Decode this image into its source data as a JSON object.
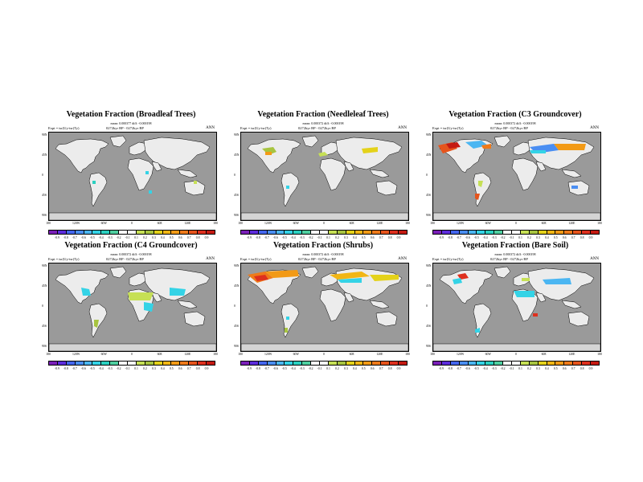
{
  "colorbar_colors": [
    "#7a1fb8",
    "#5d2cdc",
    "#4466ee",
    "#4a8ef2",
    "#4bb6f2",
    "#34d3e6",
    "#2bd0c0",
    "#4fcfa0",
    "#ffffff",
    "#ffffff",
    "#c6e055",
    "#a7c440",
    "#e4d21a",
    "#f2b614",
    "#f29a16",
    "#ee7a1a",
    "#e6541c",
    "#de301e",
    "#c51a12"
  ],
  "colors": {
    "ocean": "#9a9a9a",
    "land": "#ececec",
    "antarctica": "#d4d4d4"
  },
  "axes": {
    "lat_ticks": [
      "90N",
      "45N",
      "0",
      "45S",
      "90S"
    ],
    "lon_ticks_a": [
      "180",
      "120W",
      "60W",
      "0",
      "60E",
      "120E",
      "180"
    ]
  },
  "panels": [
    {
      "title": "Vegetation Fraction (Broadleaf Trees)",
      "mean_line": "mean: 0.000377 diff: -0.000198",
      "expt": "Expt = tsr(Uy-tsr(Ty)",
      "times": "0272kyr BP - 0272kyr BP",
      "season": "ANN",
      "cbar_labels": [
        "-0.9",
        "-0.8",
        "-0.7",
        "-0.6",
        "-0.5",
        "-0.4",
        "-0.3",
        "-0.2",
        "-0.1",
        "0.1",
        "0.2",
        "0.3",
        "0.4",
        "0.5",
        "0.6",
        "0.7",
        "0.8",
        "0.9"
      ]
    },
    {
      "title": "Vegetation Fraction (Needleleaf Trees)",
      "mean_line": "mean: 0.000372 diff: -0.000198",
      "expt": "Expt = tsr(Uy-tsr(Ty)",
      "times": "0272kyr BP - 0272kyr BP",
      "season": "ANN",
      "cbar_labels": [
        "-0.9",
        "-0.8",
        "-0.7",
        "-0.6",
        "-0.5",
        "-0.4",
        "-0.3",
        "-0.2",
        "-0.1",
        "0.1",
        "0.2",
        "0.3",
        "0.4",
        "0.5",
        "0.6",
        "0.7",
        "0.8",
        "0.9"
      ]
    },
    {
      "title": "Vegetation Fraction (C3 Groundcover)",
      "mean_line": "mean: 0.000372 diff: -0.000198",
      "expt": "Expt = tsr(Uy-tsr(Ty)",
      "times": "0272kyr BP - 0272kyr BP",
      "season": "ANN",
      "cbar_labels": [
        "-0.9",
        "-0.8",
        "-0.7",
        "-0.6",
        "-0.5",
        "-0.4",
        "-0.3",
        "-0.2",
        "-0.1",
        "0.1",
        "0.2",
        "0.3",
        "0.4",
        "0.5",
        "0.6",
        "0.7",
        "0.8",
        "0.9"
      ]
    },
    {
      "title": "Vegetation Fraction (C4 Groundcover)",
      "mean_line": "mean: 0.000372 diff: -0.000198",
      "expt": "Expt = tsr(Uy-tsr(Ty)",
      "times": "0272kyr BP - 0272kyr BP",
      "season": "ANN",
      "cbar_labels": [
        "-0.9",
        "-0.8",
        "-0.7",
        "-0.6",
        "-0.5",
        "-0.4",
        "-0.3",
        "-0.2",
        "-0.1",
        "0.1",
        "0.2",
        "0.3",
        "0.4",
        "0.5",
        "0.6",
        "0.7",
        "0.8",
        "0.9"
      ]
    },
    {
      "title": "Vegetation Fraction (Shrubs)",
      "mean_line": "mean: 0.000372 diff: -0.000198",
      "expt": "Expt = tsr(Uy-tsr(Ty)",
      "times": "0272kyr BP - 0272kyr BP",
      "season": "ANN",
      "cbar_labels": [
        "-0.9",
        "-0.8",
        "-0.7",
        "-0.6",
        "-0.5",
        "-0.4",
        "-0.3",
        "-0.2",
        "-0.1",
        "0.1",
        "0.2",
        "0.3",
        "0.4",
        "0.5",
        "0.6",
        "0.7",
        "0.8",
        "0.9"
      ]
    },
    {
      "title": "Vegetation Fraction (Bare Soil)",
      "mean_line": "mean: 0.000372 diff: -0.000198",
      "expt": "Expt = tsr(Uy-tsr(Ty)",
      "times": "0272kyr BP - 0272kyr BP",
      "season": "ANN",
      "cbar_labels": [
        "-0.9",
        "-0.8",
        "-0.7",
        "-0.6",
        "-0.5",
        "-0.4",
        "-0.3",
        "-0.2",
        "-0.1",
        "0.1",
        "0.2",
        "0.3",
        "0.4",
        "0.5",
        "0.6",
        "0.7",
        "0.8",
        "0.9"
      ]
    }
  ]
}
